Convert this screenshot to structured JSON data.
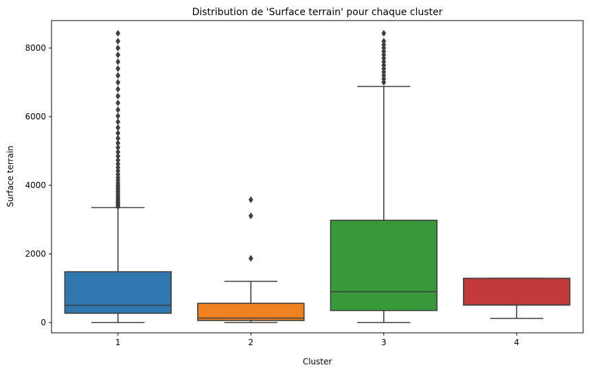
{
  "chart_data": {
    "type": "box",
    "title": "Distribution de 'Surface terrain' pour chaque cluster",
    "xlabel": "Cluster",
    "ylabel": "Surface terrain",
    "ylim": [
      -300,
      8800
    ],
    "yticks": [
      0,
      2000,
      4000,
      6000,
      8000
    ],
    "categories": [
      "1",
      "2",
      "3",
      "4"
    ],
    "grid": false,
    "edge_color": "#3f3f3f",
    "boxes": [
      {
        "category": "1",
        "color": "#2f77ae",
        "whisker_low": 0,
        "q1": 270,
        "median": 500,
        "q3": 1480,
        "whisker_high": 3350,
        "outliers": [
          3380,
          3420,
          3460,
          3500,
          3550,
          3600,
          3650,
          3700,
          3760,
          3820,
          3880,
          3940,
          4000,
          4070,
          4150,
          4230,
          4320,
          4420,
          4520,
          4620,
          4730,
          4850,
          4970,
          5100,
          5230,
          5370,
          5520,
          5680,
          5850,
          6020,
          6200,
          6400,
          6600,
          6800,
          7000,
          7200,
          7400,
          7600,
          7800,
          8000,
          8200,
          8430
        ]
      },
      {
        "category": "2",
        "color": "#ef8121",
        "whisker_low": 0,
        "q1": 60,
        "median": 130,
        "q3": 560,
        "whisker_high": 1200,
        "outliers": [
          1870,
          3110,
          3580
        ]
      },
      {
        "category": "3",
        "color": "#38993a",
        "whisker_low": 0,
        "q1": 350,
        "median": 900,
        "q3": 2980,
        "whisker_high": 6880,
        "outliers": [
          7000,
          7100,
          7200,
          7300,
          7400,
          7500,
          7600,
          7700,
          7800,
          7900,
          8000,
          8100,
          8200,
          8430
        ]
      },
      {
        "category": "4",
        "color": "#c23b3a",
        "whisker_low": 120,
        "q1": 510,
        "median": 510,
        "q3": 1290,
        "whisker_high": 1290,
        "outliers": []
      }
    ]
  }
}
